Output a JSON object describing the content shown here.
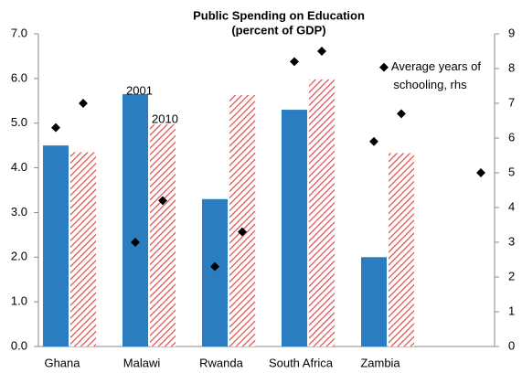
{
  "chart_data": {
    "type": "bar",
    "title": "Public Spending on Education",
    "subtitle": "(percent of GDP)",
    "categories": [
      "Ghana",
      "Malawi",
      "Rwanda",
      "South Africa",
      "Zambia",
      null
    ],
    "series": [
      {
        "name": "2001",
        "type": "bar",
        "color": "#2a7dc1",
        "values": [
          4.5,
          5.65,
          3.3,
          5.3,
          2.0,
          null
        ]
      },
      {
        "name": "2010",
        "type": "bar",
        "color": "#e04b4b",
        "hatch": true,
        "values": [
          4.35,
          4.97,
          5.63,
          5.98,
          4.33,
          null
        ]
      },
      {
        "name": "Average years of schooling, rhs",
        "type": "scatter",
        "axis": "y2",
        "color": "#000000",
        "values": [
          6.3,
          3.0,
          2.3,
          8.2,
          5.9,
          null
        ]
      },
      {
        "type": "scatter",
        "axis": "y2",
        "color": "#000000",
        "values": [
          7.0,
          4.2,
          3.3,
          8.5,
          6.7,
          5.0
        ]
      }
    ],
    "ylim": [
      0,
      7
    ],
    "yticks": [
      {
        "value": 0,
        "label": "0.0"
      },
      {
        "value": 1,
        "label": "1.0"
      },
      {
        "value": 2,
        "label": "2.0"
      },
      {
        "value": 3,
        "label": "3.0"
      },
      {
        "value": 4,
        "label": "4.0"
      },
      {
        "value": 5,
        "label": "5.0"
      },
      {
        "value": 6,
        "label": "6.0"
      },
      {
        "value": 7,
        "label": "7.0"
      }
    ],
    "y2lim": [
      0,
      9
    ],
    "y2ticks": [
      0,
      1,
      2,
      3,
      4,
      5,
      6,
      7,
      8,
      9
    ],
    "grid": false
  }
}
